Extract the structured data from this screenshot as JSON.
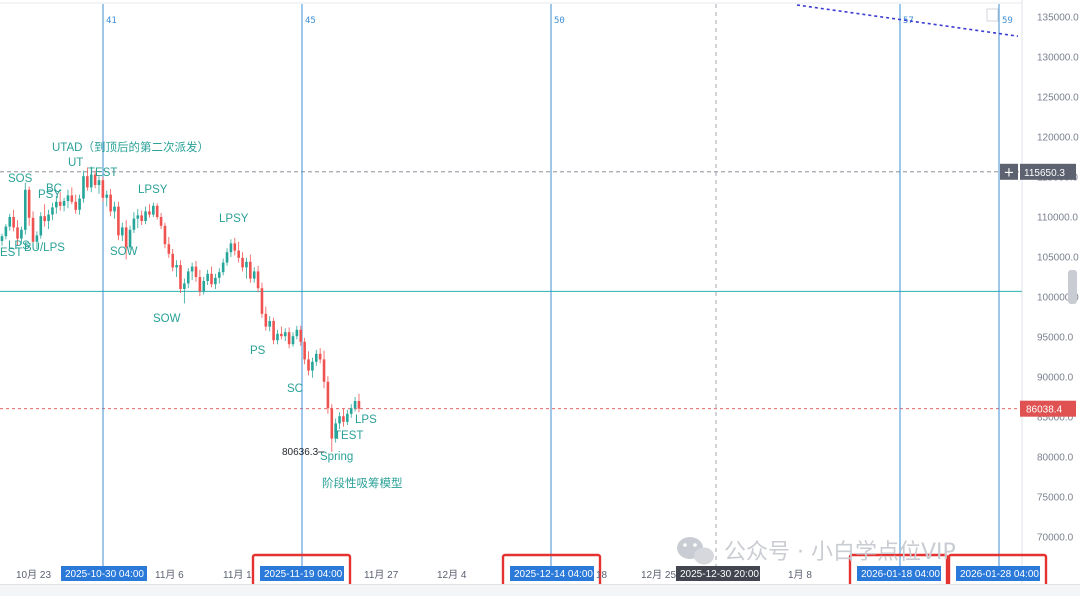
{
  "chart_data": {
    "type": "candlestick",
    "ylim": [
      68000,
      137000
    ],
    "y_ticks": [
      "70000.0",
      "75000.0",
      "80000.0",
      "85000.0",
      "90000.0",
      "95000.0",
      "100000.0",
      "105000.0",
      "110000.0",
      "115000.0",
      "120000.0",
      "125000.0",
      "130000.0",
      "135000.0"
    ],
    "y_tick_values": [
      70000,
      75000,
      80000,
      85000,
      90000,
      95000,
      100000,
      105000,
      110000,
      115000,
      120000,
      125000,
      130000,
      135000
    ],
    "x_labels": [
      "10月 23",
      "11月 6",
      "11月 1",
      "11月 27",
      "12月 4",
      "12月 25",
      "1月 8"
    ],
    "cycle_labels": [
      "41",
      "45",
      "50",
      "57",
      "59"
    ],
    "horizontal_levels": {
      "resistance_dashed": {
        "value": 115650.3,
        "label": "115650.3",
        "color": "#5b6170"
      },
      "support_solid": {
        "value": 100700,
        "color": "#2ab3b3"
      },
      "current_price": {
        "value": 86038.4,
        "label": "86038.4",
        "color": "#e05252"
      }
    },
    "low_marker": {
      "label": "80636.3",
      "value": 80636.3
    },
    "wyckoff_labels": [
      {
        "text": "SOS",
        "price": 114300
      },
      {
        "text": "PSY",
        "price": 112300
      },
      {
        "text": "BC",
        "price": 113000
      },
      {
        "text": "UT",
        "price": 116300
      },
      {
        "text": "TEST",
        "price": 114700
      },
      {
        "text": "UTAD（到顶后的第二次派发）",
        "price": 118200
      },
      {
        "text": "LPSY",
        "price": 112500
      },
      {
        "text": "LPS",
        "price": 106100
      },
      {
        "text": "BU/LPS",
        "price": 105700
      },
      {
        "text": "EST",
        "price": 105300
      },
      {
        "text": "SOW",
        "price": 105000
      },
      {
        "text": "LPSY",
        "price": 108600
      },
      {
        "text": "SOW",
        "price": 97400
      },
      {
        "text": "PS",
        "price": 92400
      },
      {
        "text": "SC",
        "price": 88100
      },
      {
        "text": "LPS",
        "price": 84300
      },
      {
        "text": "TEST",
        "price": 82600
      },
      {
        "text": "Spring",
        "price": 80000
      },
      {
        "text": "阶段性吸筹模型",
        "price": 77100
      }
    ],
    "date_boxes": [
      {
        "label": "2025-10-30 04:00",
        "color": "#2b7ad9",
        "highlight": false
      },
      {
        "label": "2025-11-19 04:00",
        "color": "#2b7ad9",
        "highlight": true
      },
      {
        "label": "2025-12-14 04:00",
        "color": "#2b7ad9",
        "highlight": true
      },
      {
        "label": "2025-12-30 20:00",
        "color": "#434651",
        "highlight": false
      },
      {
        "label": "2026-01-18 04:00",
        "color": "#2b7ad9",
        "highlight": true
      },
      {
        "label": "2026-01-28 04:00",
        "color": "#2b7ad9",
        "highlight": true
      }
    ],
    "date_box_suffix": "18",
    "trendline": {
      "style": "dotted",
      "color": "#3b3bd6",
      "from_price": 136500,
      "to_price": 132600
    },
    "candles_ohlc": [
      [
        107000,
        107900,
        106400,
        107600
      ],
      [
        107600,
        109100,
        107200,
        108800
      ],
      [
        108800,
        110400,
        108300,
        110000
      ],
      [
        110000,
        110900,
        108200,
        108700
      ],
      [
        108700,
        109600,
        106500,
        107300
      ],
      [
        107300,
        108800,
        106600,
        108400
      ],
      [
        108400,
        114300,
        107800,
        113400
      ],
      [
        113400,
        113800,
        108900,
        109900
      ],
      [
        109900,
        110700,
        106300,
        106900
      ],
      [
        106900,
        108200,
        106000,
        107700
      ],
      [
        107700,
        110600,
        107300,
        110100
      ],
      [
        110100,
        111600,
        108800,
        109500
      ],
      [
        109500,
        110900,
        108500,
        110300
      ],
      [
        110300,
        111800,
        109600,
        111200
      ],
      [
        111200,
        112600,
        110400,
        111900
      ],
      [
        111900,
        113100,
        110800,
        111400
      ],
      [
        111400,
        112400,
        110700,
        112000
      ],
      [
        112000,
        113400,
        111100,
        112700
      ],
      [
        112700,
        113700,
        111600,
        111900
      ],
      [
        111900,
        112800,
        110400,
        110900
      ],
      [
        110900,
        112800,
        110300,
        112300
      ],
      [
        112300,
        115800,
        111800,
        115100
      ],
      [
        115100,
        116200,
        113300,
        113700
      ],
      [
        113700,
        116300,
        113100,
        115300
      ],
      [
        115300,
        115800,
        113600,
        114000
      ],
      [
        114000,
        115100,
        112900,
        114600
      ],
      [
        114600,
        115000,
        111900,
        112400
      ],
      [
        112400,
        113300,
        111300,
        112800
      ],
      [
        112800,
        113500,
        110100,
        110700
      ],
      [
        110700,
        111900,
        109800,
        111300
      ],
      [
        111300,
        111900,
        107100,
        107700
      ],
      [
        107700,
        109300,
        107000,
        108700
      ],
      [
        108700,
        109600,
        104700,
        106200
      ],
      [
        106200,
        108900,
        105900,
        108400
      ],
      [
        108400,
        110600,
        108000,
        109800
      ],
      [
        109800,
        111000,
        108600,
        110200
      ],
      [
        110200,
        110800,
        109000,
        109500
      ],
      [
        109500,
        111300,
        109100,
        110700
      ],
      [
        110700,
        111600,
        109900,
        110300
      ],
      [
        110300,
        111800,
        110000,
        111400
      ],
      [
        111400,
        111700,
        109700,
        110000
      ],
      [
        110000,
        110500,
        108500,
        108900
      ],
      [
        108900,
        109300,
        106100,
        106600
      ],
      [
        106600,
        107500,
        104900,
        105400
      ],
      [
        105400,
        106000,
        103200,
        103700
      ],
      [
        103700,
        104600,
        102500,
        104000
      ],
      [
        104000,
        104600,
        100500,
        101000
      ],
      [
        101000,
        102300,
        99200,
        101700
      ],
      [
        101700,
        103600,
        101100,
        103200
      ],
      [
        103200,
        104300,
        102100,
        103800
      ],
      [
        103800,
        104500,
        101900,
        102500
      ],
      [
        102500,
        103400,
        100100,
        100700
      ],
      [
        100700,
        102500,
        100300,
        102000
      ],
      [
        102000,
        103400,
        101500,
        102900
      ],
      [
        102900,
        103800,
        101200,
        101600
      ],
      [
        101600,
        102900,
        101000,
        102400
      ],
      [
        102400,
        103600,
        101700,
        103100
      ],
      [
        103100,
        104800,
        102700,
        104300
      ],
      [
        104300,
        106100,
        103900,
        105600
      ],
      [
        105600,
        107200,
        105000,
        106700
      ],
      [
        106700,
        107400,
        105200,
        105800
      ],
      [
        105800,
        106900,
        104300,
        104900
      ],
      [
        104900,
        105600,
        103200,
        103700
      ],
      [
        103700,
        104900,
        102300,
        104400
      ],
      [
        104400,
        105300,
        101800,
        102300
      ],
      [
        102300,
        103700,
        101800,
        103200
      ],
      [
        103200,
        103900,
        100600,
        101100
      ],
      [
        101100,
        101800,
        97400,
        97900
      ],
      [
        97900,
        98800,
        95800,
        96300
      ],
      [
        96300,
        97600,
        95700,
        97000
      ],
      [
        97000,
        97400,
        94100,
        94600
      ],
      [
        94600,
        95900,
        94100,
        95400
      ],
      [
        95400,
        96300,
        94700,
        95100
      ],
      [
        95100,
        96100,
        94500,
        95600
      ],
      [
        95600,
        96200,
        93600,
        94100
      ],
      [
        94100,
        95600,
        93800,
        95100
      ],
      [
        95100,
        96400,
        94700,
        95900
      ],
      [
        95900,
        96400,
        93900,
        94400
      ],
      [
        94400,
        94900,
        91600,
        92200
      ],
      [
        92200,
        93200,
        90200,
        90800
      ],
      [
        90800,
        92400,
        89900,
        91900
      ],
      [
        91900,
        93400,
        91400,
        92900
      ],
      [
        92900,
        93600,
        91700,
        92200
      ],
      [
        92200,
        93300,
        88600,
        89400
      ],
      [
        89400,
        90100,
        85400,
        86100
      ],
      [
        86100,
        86600,
        80636,
        82300
      ],
      [
        82300,
        84800,
        81800,
        84200
      ],
      [
        84200,
        85600,
        83500,
        85100
      ],
      [
        85100,
        86100,
        83800,
        84400
      ],
      [
        84400,
        85900,
        84000,
        85400
      ],
      [
        85400,
        86600,
        84900,
        86100
      ],
      [
        86100,
        87500,
        85700,
        87000
      ],
      [
        87000,
        87900,
        85600,
        86038
      ]
    ]
  },
  "watermark": {
    "text": "公众号 · 小白学点位VIP"
  }
}
